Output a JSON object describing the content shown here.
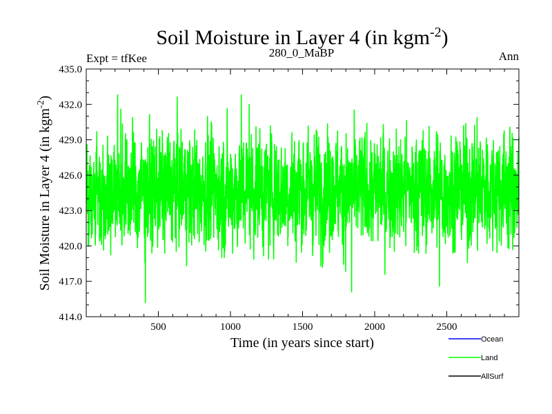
{
  "chart_data": {
    "type": "line",
    "title": "Soil Moisture in Layer 4 (in kgm",
    "title_superscript": "-2",
    "title_suffix": ")",
    "subtitle_left": "Expt = tfKee",
    "subtitle_center": "280_0_MaBP",
    "subtitle_right": "Ann",
    "xlabel": "Time (in years since start)",
    "ylabel": "Soil Moisture in Layer 4 (in kgm",
    "ylabel_superscript": "-2",
    "ylabel_suffix": ")",
    "xlim": [
      0,
      3000
    ],
    "ylim": [
      414.0,
      435.0
    ],
    "xticks": [
      500,
      1000,
      1500,
      2000,
      2500
    ],
    "xtick_labels": [
      "500",
      "1000",
      "1500",
      "2000",
      "2500"
    ],
    "yticks": [
      414,
      417,
      420,
      423,
      426,
      429,
      432,
      435
    ],
    "ytick_labels": [
      "414.0",
      "417.0",
      "420.0",
      "423.0",
      "426.0",
      "429.0",
      "432.0",
      "435.0"
    ],
    "grid": false,
    "legend_placement": "bottom-right",
    "series": [
      {
        "name": "Ocean",
        "color": "#0000ff",
        "values": []
      },
      {
        "name": "Land",
        "color": "#00ff00",
        "x_start": 1,
        "x_step": 1,
        "n": 3000,
        "mean": 424.8,
        "spread": 2.2,
        "min": 415.2,
        "max": 432.8,
        "notable_points": [
          {
            "x": 5,
            "y": 428.6
          },
          {
            "x": 240,
            "y": 431.6
          },
          {
            "x": 410,
            "y": 415.2
          },
          {
            "x": 1075,
            "y": 432.8
          },
          {
            "x": 1130,
            "y": 432.0
          },
          {
            "x": 1840,
            "y": 416.1
          },
          {
            "x": 2060,
            "y": 430.3
          },
          {
            "x": 2450,
            "y": 416.6
          }
        ]
      },
      {
        "name": "AllSurf",
        "color": "#000000",
        "values": []
      }
    ]
  }
}
